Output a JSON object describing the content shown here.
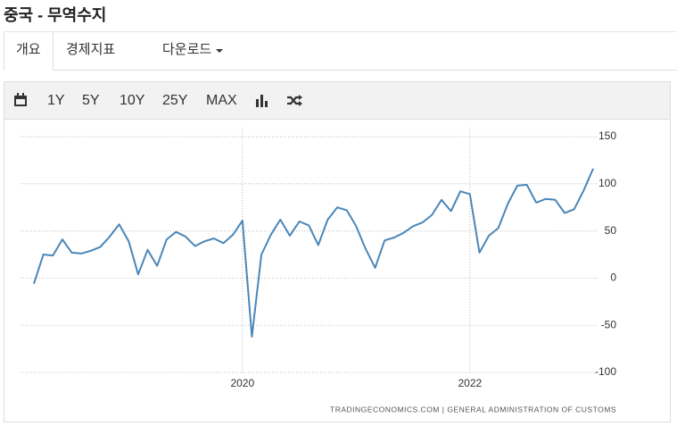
{
  "header": {
    "title": "중국 - 무역수지"
  },
  "tabs": [
    "개요",
    "경제지표",
    "다운로드"
  ],
  "toolbar": [
    "1Y",
    "5Y",
    "10Y",
    "25Y",
    "MAX"
  ],
  "chart_data": {
    "type": "line",
    "categories": [
      null,
      null,
      null,
      null,
      null,
      null,
      null,
      null,
      null,
      null,
      null,
      null,
      null,
      null,
      null,
      null,
      null,
      null,
      null,
      null,
      null,
      null,
      "2020",
      null,
      null,
      null,
      null,
      null,
      null,
      null,
      null,
      null,
      null,
      null,
      null,
      null,
      null,
      null,
      null,
      null,
      null,
      null,
      null,
      null,
      null,
      null,
      "2022",
      null,
      null,
      null,
      null,
      null,
      null,
      null,
      null,
      null,
      null,
      null,
      null,
      null
    ],
    "values": [
      -6,
      25,
      24,
      41,
      27,
      26,
      29,
      33,
      44,
      57,
      39,
      4,
      30,
      13,
      41,
      49,
      44,
      34,
      39,
      42,
      37,
      46,
      61,
      -62,
      25,
      46,
      62,
      45,
      60,
      56,
      35,
      62,
      75,
      72,
      55,
      31,
      11,
      40,
      43,
      48,
      55,
      59,
      67,
      83,
      71,
      92,
      89,
      27,
      45,
      53,
      79,
      98,
      99,
      80,
      84,
      83,
      69,
      73,
      93,
      116
    ],
    "color": "#4a86b8",
    "ylim": [
      -100,
      150
    ],
    "yticks": [
      -100,
      -50,
      0,
      50,
      100,
      150
    ],
    "grid": true,
    "source": "TRADINGECONOMICS.COM | GENERAL ADMINISTRATION OF CUSTOMS"
  }
}
